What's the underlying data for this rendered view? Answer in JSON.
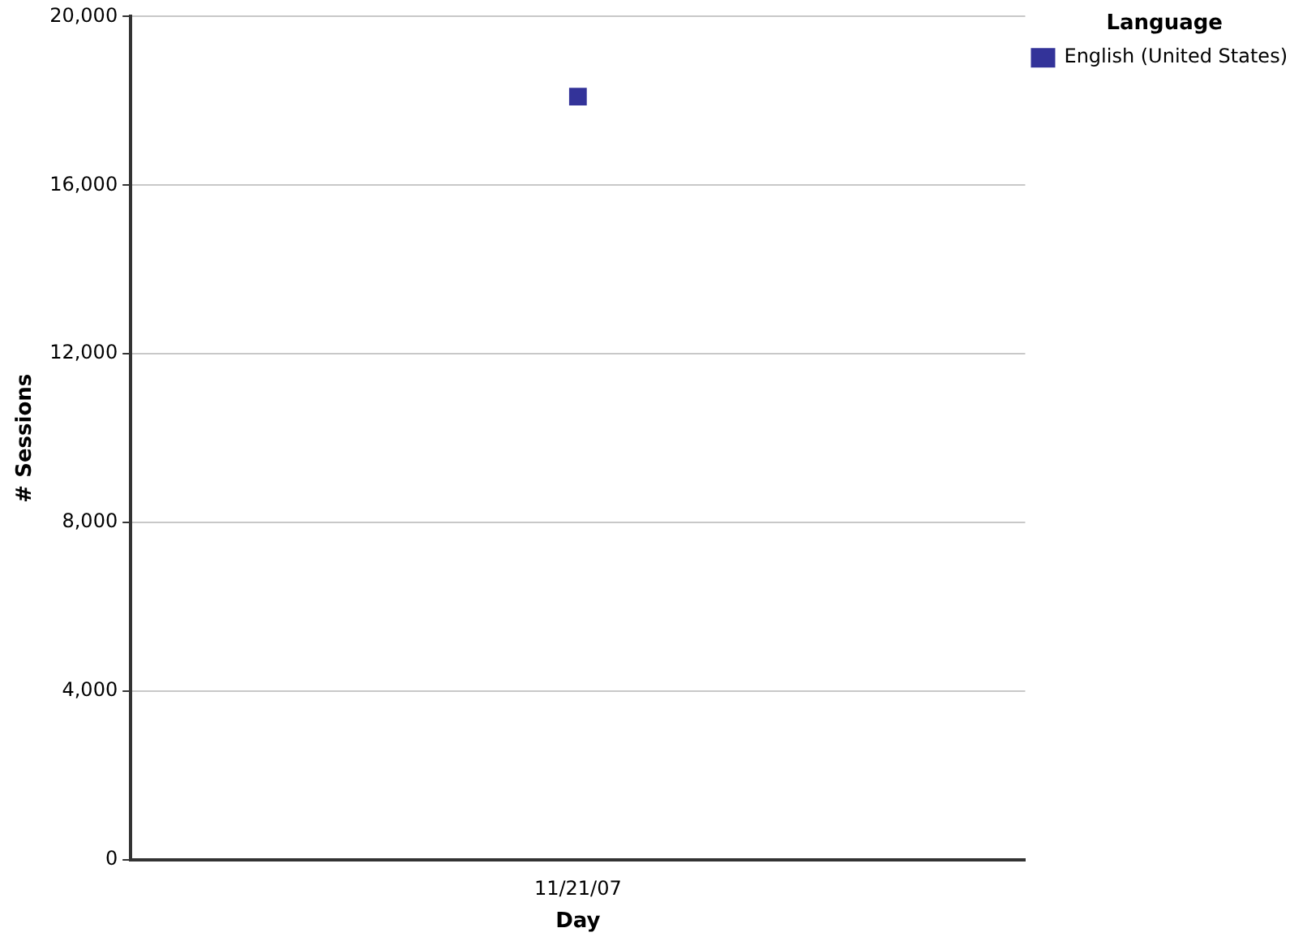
{
  "chart_data": {
    "type": "line",
    "xlabel": "Day",
    "ylabel": "# Sessions",
    "legend_title": "Language",
    "categories": [
      "11/21/07"
    ],
    "series": [
      {
        "name": "English (United States)",
        "color": "#333399",
        "values": [
          18100
        ]
      }
    ],
    "ylim": [
      0,
      20000
    ],
    "yticks": [
      0,
      {
        "value": 4000,
        "label": "4,000"
      },
      {
        "value": 8000,
        "label": "8,000"
      },
      {
        "value": 12000,
        "label": "12,000"
      },
      {
        "value": 16000,
        "label": "16,000"
      },
      {
        "value": 20000,
        "label": "20,000"
      }
    ],
    "grid": "y",
    "legend": "top right",
    "marker": "square"
  }
}
